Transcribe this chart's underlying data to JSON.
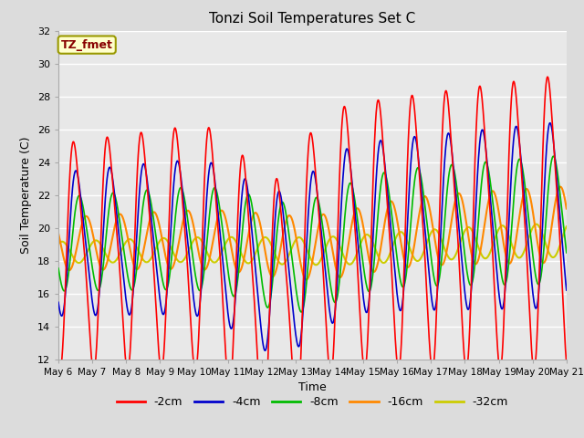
{
  "title": "Tonzi Soil Temperatures Set C",
  "xlabel": "Time",
  "ylabel": "Soil Temperature (C)",
  "ylim": [
    12,
    32
  ],
  "yticks": [
    12,
    14,
    16,
    18,
    20,
    22,
    24,
    26,
    28,
    30,
    32
  ],
  "background_color": "#dcdcdc",
  "plot_bg_color": "#e8e8e8",
  "series_colors": [
    "#ff0000",
    "#0000cc",
    "#00bb00",
    "#ff8800",
    "#cccc00"
  ],
  "series_labels": [
    "-2cm",
    "-4cm",
    "-8cm",
    "-16cm",
    "-32cm"
  ],
  "annotation_text": "TZ_fmet",
  "annotation_bg": "#ffffcc",
  "annotation_border": "#999900",
  "annotation_text_color": "#880000",
  "grid_color": "#ffffff"
}
